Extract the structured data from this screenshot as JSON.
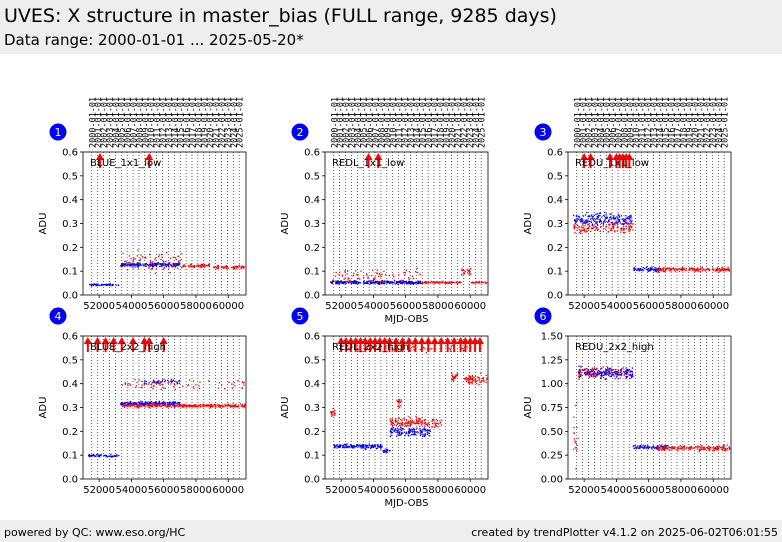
{
  "header": {
    "title": "UVES: X structure in master_bias (FULL range, 9285 days)",
    "subtitle": "Data range: 2000-01-01 ... 2025-05-20*"
  },
  "footer": {
    "left": "powered by QC: www.eso.org/HC",
    "right": "created by trendPlotter v4.1.2 on 2025-06-02T06:01:55"
  },
  "colors": {
    "blue": "#0000ff",
    "red": "#ff0000",
    "badge": "#0000ff"
  },
  "year_labels": [
    "2000-01-01",
    "2001-01-01",
    "2002-01-01",
    "2003-01-01",
    "2004-01-01",
    "2005-01-01",
    "2006-01-01",
    "2007-01-01",
    "2008-01-01",
    "2009-01-01",
    "2010-01-01",
    "2011-01-01",
    "2012-01-01",
    "2013-01-01",
    "2014-01-01",
    "2015-01-01",
    "2016-01-01",
    "2017-01-01",
    "2018-01-01",
    "2019-01-01",
    "2020-01-01",
    "2021-01-01",
    "2022-01-01",
    "2023-01-01",
    "2024-01-01",
    "2025-01-01"
  ],
  "chart_data": [
    {
      "type": "scatter",
      "badge": "1",
      "label": "BLUE_1x1_low",
      "ylabel": "ADU",
      "xlabel": "",
      "xlim": [
        51000,
        61100
      ],
      "ylim": [
        0,
        0.6
      ],
      "yticks": [
        0,
        0.1,
        0.2,
        0.3,
        0.4,
        0.5,
        0.6
      ],
      "ytick_decimals": 1,
      "xticks": [
        52000,
        54000,
        56000,
        58000,
        60000
      ],
      "arrows_x": [
        52050,
        55100
      ],
      "segments": [
        {
          "color": "blue",
          "x": [
            51300,
            53200
          ],
          "y": 0.045,
          "spread": 0.006,
          "density": 30
        },
        {
          "color": "blue",
          "x": [
            53300,
            57000
          ],
          "y": 0.13,
          "spread": 0.012,
          "density": 50
        },
        {
          "color": "red",
          "x": [
            53400,
            57200
          ],
          "y": 0.145,
          "spread": 0.06,
          "density": 20
        },
        {
          "color": "red",
          "x": [
            57000,
            58800
          ],
          "y": 0.125,
          "spread": 0.01,
          "density": 30
        },
        {
          "color": "red",
          "x": [
            59000,
            61000
          ],
          "y": 0.12,
          "spread": 0.01,
          "density": 30
        }
      ]
    },
    {
      "type": "scatter",
      "badge": "2",
      "label": "REDL_1x1_low",
      "ylabel": "ADU",
      "xlabel": "MJD-OBS",
      "xlim": [
        51000,
        61100
      ],
      "ylim": [
        0,
        0.6
      ],
      "yticks": [
        0,
        0.1,
        0.2,
        0.3,
        0.4,
        0.5,
        0.6
      ],
      "ytick_decimals": 1,
      "xticks": [
        52000,
        54000,
        56000,
        58000,
        60000
      ],
      "arrows_x": [
        53700,
        54300
      ],
      "segments": [
        {
          "color": "blue",
          "x": [
            51300,
            57000
          ],
          "y": 0.055,
          "spread": 0.01,
          "density": 50
        },
        {
          "color": "red",
          "x": [
            51300,
            57000
          ],
          "y": 0.08,
          "spread": 0.05,
          "density": 15
        },
        {
          "color": "red",
          "x": [
            57000,
            59400
          ],
          "y": 0.055,
          "spread": 0.006,
          "density": 30
        },
        {
          "color": "red",
          "x": [
            59400,
            60000
          ],
          "y": 0.1,
          "spread": 0.03,
          "density": 40
        },
        {
          "color": "red",
          "x": [
            60000,
            61000
          ],
          "y": 0.055,
          "spread": 0.006,
          "density": 30
        }
      ]
    },
    {
      "type": "scatter",
      "badge": "3",
      "label": "REDU_1x1_low",
      "ylabel": "ADU",
      "xlabel": "",
      "xlim": [
        51000,
        61100
      ],
      "ylim": [
        0,
        0.6
      ],
      "yticks": [
        0,
        0.1,
        0.2,
        0.3,
        0.4,
        0.5,
        0.6
      ],
      "ytick_decimals": 1,
      "xticks": [
        52000,
        54000,
        56000,
        58000,
        60000
      ],
      "arrows_x": [
        52000,
        52400,
        53600,
        54000,
        54200,
        54400,
        54600,
        54800
      ],
      "segments": [
        {
          "color": "red",
          "x": [
            51300,
            55000
          ],
          "y": 0.29,
          "spread": 0.04,
          "density": 40
        },
        {
          "color": "blue",
          "x": [
            51300,
            55000
          ],
          "y": 0.32,
          "spread": 0.04,
          "density": 45
        },
        {
          "color": "blue",
          "x": [
            55000,
            56800
          ],
          "y": 0.11,
          "spread": 0.015,
          "density": 40
        },
        {
          "color": "red",
          "x": [
            56500,
            61000
          ],
          "y": 0.11,
          "spread": 0.012,
          "density": 40
        }
      ]
    },
    {
      "type": "scatter",
      "badge": "4",
      "label": "BLUE_2x2_high",
      "ylabel": "ADU",
      "xlabel": "",
      "xlim": [
        51000,
        61100
      ],
      "ylim": [
        0,
        0.6
      ],
      "yticks": [
        0,
        0.1,
        0.2,
        0.3,
        0.4,
        0.5,
        0.6
      ],
      "ytick_decimals": 1,
      "xticks": [
        52000,
        54000,
        56000,
        58000,
        60000
      ],
      "arrows_x": [
        51300,
        51900,
        52400,
        52900,
        53400,
        54100,
        54800,
        55100,
        56000
      ],
      "segments": [
        {
          "color": "blue",
          "x": [
            51300,
            53200
          ],
          "y": 0.1,
          "spread": 0.008,
          "density": 30
        },
        {
          "color": "blue",
          "x": [
            53300,
            57000
          ],
          "y": 0.32,
          "spread": 0.012,
          "density": 50
        },
        {
          "color": "blue",
          "x": [
            54500,
            57000
          ],
          "y": 0.41,
          "spread": 0.015,
          "density": 15
        },
        {
          "color": "red",
          "x": [
            53400,
            61000
          ],
          "y": 0.31,
          "spread": 0.01,
          "density": 40
        },
        {
          "color": "red",
          "x": [
            53400,
            61000
          ],
          "y": 0.4,
          "spread": 0.03,
          "density": 10
        }
      ]
    },
    {
      "type": "scatter",
      "badge": "5",
      "label": "REDL_2x2_high",
      "ylabel": "ADU",
      "xlabel": "MJD-OBS",
      "xlim": [
        51000,
        61100
      ],
      "ylim": [
        0,
        0.6
      ],
      "yticks": [
        0,
        0.1,
        0.2,
        0.3,
        0.4,
        0.5,
        0.6
      ],
      "ytick_decimals": 1,
      "xticks": [
        52000,
        54000,
        56000,
        58000,
        60000
      ],
      "arrows_x": [
        52000,
        52300,
        52600,
        52900,
        53200,
        53500,
        53800,
        54100,
        54400,
        54700,
        55000,
        55400,
        55800,
        56200,
        56600,
        57000,
        57400,
        57800,
        58200,
        58600,
        59000,
        59400,
        59700,
        60000,
        60300,
        60600
      ],
      "segments": [
        {
          "color": "red",
          "x": [
            51300,
            51600
          ],
          "y": 0.28,
          "spread": 0.03,
          "density": 60
        },
        {
          "color": "blue",
          "x": [
            51500,
            54500
          ],
          "y": 0.14,
          "spread": 0.015,
          "density": 50
        },
        {
          "color": "blue",
          "x": [
            54500,
            55000
          ],
          "y": 0.12,
          "spread": 0.015,
          "density": 40
        },
        {
          "color": "blue",
          "x": [
            55000,
            57500
          ],
          "y": 0.2,
          "spread": 0.03,
          "density": 50
        },
        {
          "color": "red",
          "x": [
            55000,
            58200
          ],
          "y": 0.24,
          "spread": 0.03,
          "density": 45
        },
        {
          "color": "red",
          "x": [
            55400,
            55700
          ],
          "y": 0.32,
          "spread": 0.03,
          "density": 60
        },
        {
          "color": "red",
          "x": [
            58800,
            59200
          ],
          "y": 0.43,
          "spread": 0.03,
          "density": 60
        },
        {
          "color": "red",
          "x": [
            59600,
            61000
          ],
          "y": 0.42,
          "spread": 0.03,
          "density": 50
        },
        {
          "color": "red",
          "x": [
            52000,
            60000
          ],
          "y": 0.55,
          "spread": 0.025,
          "density": 8
        }
      ]
    },
    {
      "type": "scatter",
      "badge": "6",
      "label": "REDU_2x2_high",
      "ylabel": "ADU",
      "xlabel": "",
      "xlim": [
        51000,
        61100
      ],
      "ylim": [
        0,
        1.5
      ],
      "yticks": [
        0,
        0.25,
        0.5,
        0.75,
        1.0,
        1.25,
        1.5
      ],
      "ytick_decimals": 2,
      "xticks": [
        52000,
        54000,
        56000,
        58000,
        60000
      ],
      "arrows_x": [],
      "segments": [
        {
          "color": "red",
          "x": [
            51300,
            51600
          ],
          "y": 0.5,
          "spread": 0.45,
          "density": 60
        },
        {
          "color": "red",
          "x": [
            51600,
            55000
          ],
          "y": 1.12,
          "spread": 0.08,
          "density": 40
        },
        {
          "color": "blue",
          "x": [
            51600,
            55000
          ],
          "y": 1.12,
          "spread": 0.08,
          "density": 45
        },
        {
          "color": "blue",
          "x": [
            55000,
            57200
          ],
          "y": 0.34,
          "spread": 0.03,
          "density": 40
        },
        {
          "color": "red",
          "x": [
            56500,
            61000
          ],
          "y": 0.33,
          "spread": 0.04,
          "density": 40
        }
      ]
    }
  ]
}
